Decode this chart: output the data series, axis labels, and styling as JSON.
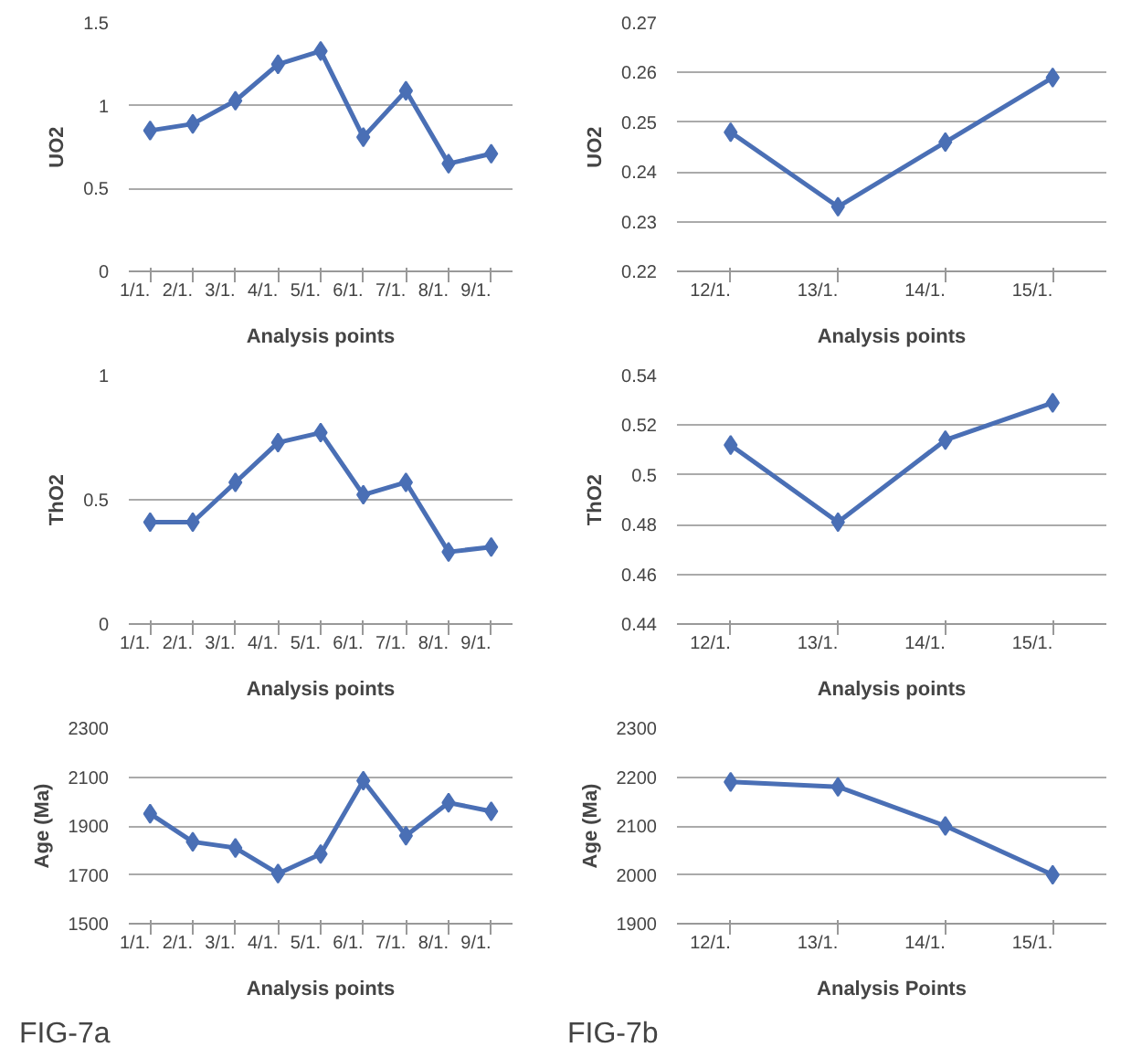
{
  "chart_data": [
    {
      "type": "line",
      "ylabel": "UO2",
      "xlabel": "Analysis points",
      "categories": [
        "1/1.",
        "2/1.",
        "3/1.",
        "4/1.",
        "5/1.",
        "6/1.",
        "7/1.",
        "8/1.",
        "9/1."
      ],
      "series": [
        {
          "color": "#4a6fb5",
          "values": [
            0.85,
            0.89,
            1.03,
            1.25,
            1.33,
            0.81,
            1.09,
            0.65,
            0.71
          ]
        }
      ],
      "ylim": [
        0,
        1.5
      ],
      "yticks": [
        0,
        0.5,
        1,
        1.5
      ],
      "grid": "y",
      "marker": "diamond"
    },
    {
      "type": "line",
      "ylabel": "UO2",
      "xlabel": "Analysis points",
      "categories": [
        "12/1.",
        "13/1.",
        "14/1.",
        "15/1."
      ],
      "series": [
        {
          "color": "#4a6fb5",
          "values": [
            0.248,
            0.233,
            0.246,
            0.259
          ]
        }
      ],
      "ylim": [
        0.22,
        0.27
      ],
      "yticks": [
        0.22,
        0.23,
        0.24,
        0.25,
        0.26,
        0.27
      ],
      "grid": "y",
      "marker": "diamond"
    },
    {
      "type": "line",
      "ylabel": "ThO2",
      "xlabel": "Analysis points",
      "categories": [
        "1/1.",
        "2/1.",
        "3/1.",
        "4/1.",
        "5/1.",
        "6/1.",
        "7/1.",
        "8/1.",
        "9/1."
      ],
      "series": [
        {
          "color": "#4a6fb5",
          "values": [
            0.41,
            0.41,
            0.57,
            0.73,
            0.77,
            0.52,
            0.57,
            0.29,
            0.31
          ]
        }
      ],
      "ylim": [
        0,
        1
      ],
      "yticks": [
        0,
        0.5,
        1
      ],
      "grid": "y",
      "marker": "diamond"
    },
    {
      "type": "line",
      "ylabel": "ThO2",
      "xlabel": "Analysis points",
      "categories": [
        "12/1.",
        "13/1.",
        "14/1.",
        "15/1."
      ],
      "series": [
        {
          "color": "#4a6fb5",
          "values": [
            0.512,
            0.481,
            0.514,
            0.529
          ]
        }
      ],
      "ylim": [
        0.44,
        0.54
      ],
      "yticks": [
        0.44,
        0.46,
        0.48,
        0.5,
        0.52,
        0.54
      ],
      "grid": "y",
      "marker": "diamond"
    },
    {
      "type": "line",
      "ylabel": "Age (Ma)",
      "xlabel": "Analysis points",
      "annotations": [
        "FIG-7a"
      ],
      "categories": [
        "1/1.",
        "2/1.",
        "3/1.",
        "4/1.",
        "5/1.",
        "6/1.",
        "7/1.",
        "8/1.",
        "9/1."
      ],
      "series": [
        {
          "color": "#4a6fb5",
          "values": [
            1950,
            1835,
            1810,
            1705,
            1785,
            2085,
            1860,
            1995,
            1960
          ]
        }
      ],
      "ylim": [
        1500,
        2300
      ],
      "yticks": [
        1500,
        1700,
        1900,
        2100,
        2300
      ],
      "grid": "y",
      "marker": "diamond"
    },
    {
      "type": "line",
      "ylabel": "Age (Ma)",
      "xlabel": "Analysis Points",
      "annotations": [
        "FIG-7b"
      ],
      "categories": [
        "12/1.",
        "13/1.",
        "14/1.",
        "15/1."
      ],
      "series": [
        {
          "color": "#4a6fb5",
          "values": [
            2190,
            2180,
            2100,
            2000
          ]
        }
      ],
      "ylim": [
        1900,
        2300
      ],
      "yticks": [
        1900,
        2000,
        2100,
        2200,
        2300
      ],
      "grid": "y",
      "marker": "diamond"
    }
  ]
}
